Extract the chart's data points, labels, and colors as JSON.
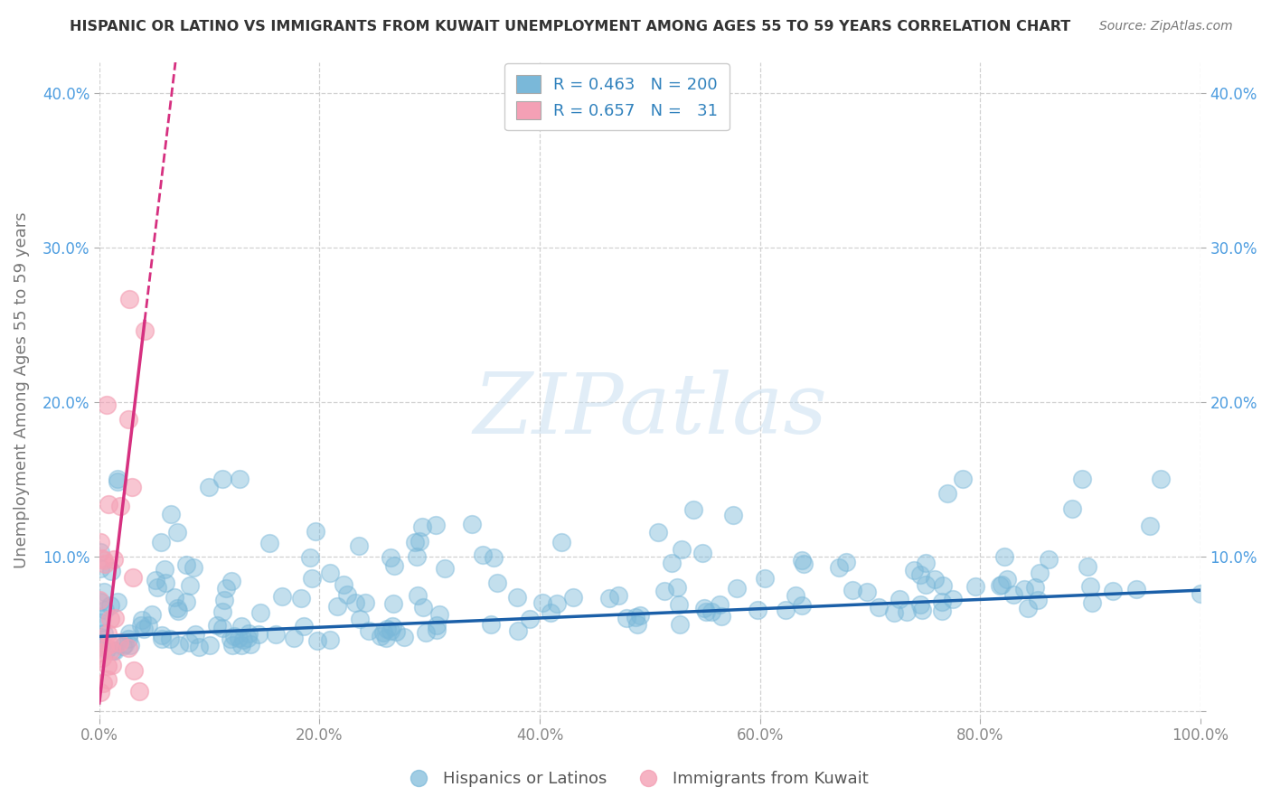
{
  "title": "HISPANIC OR LATINO VS IMMIGRANTS FROM KUWAIT UNEMPLOYMENT AMONG AGES 55 TO 59 YEARS CORRELATION CHART",
  "source": "Source: ZipAtlas.com",
  "ylabel": "Unemployment Among Ages 55 to 59 years",
  "xlim": [
    0,
    1.0
  ],
  "ylim": [
    -0.005,
    0.42
  ],
  "yticks": [
    0.0,
    0.1,
    0.2,
    0.3,
    0.4
  ],
  "ytick_labels": [
    "",
    "10.0%",
    "20.0%",
    "30.0%",
    "40.0%"
  ],
  "xticks": [
    0,
    0.2,
    0.4,
    0.6,
    0.8,
    1.0
  ],
  "xtick_labels": [
    "0.0%",
    "20.0%",
    "40.0%",
    "60.0%",
    "80.0%",
    "100.0%"
  ],
  "blue_color": "#7ab8d9",
  "pink_color": "#f4a0b5",
  "blue_line_color": "#1a5fa8",
  "pink_line_color": "#d63080",
  "R_blue": 0.463,
  "N_blue": 200,
  "R_pink": 0.657,
  "N_pink": 31,
  "legend_R_N_color": "#3182bd",
  "tick_color": "#4d9de0",
  "watermark_text": "ZIPatlas",
  "background_color": "#ffffff",
  "grid_color": "#cccccc",
  "title_color": "#333333",
  "blue_seed": 42,
  "pink_seed": 7,
  "blue_trend_intercept": 0.048,
  "blue_trend_slope": 0.032,
  "pink_trend_intercept": 0.0,
  "pink_trend_slope": 6.5
}
